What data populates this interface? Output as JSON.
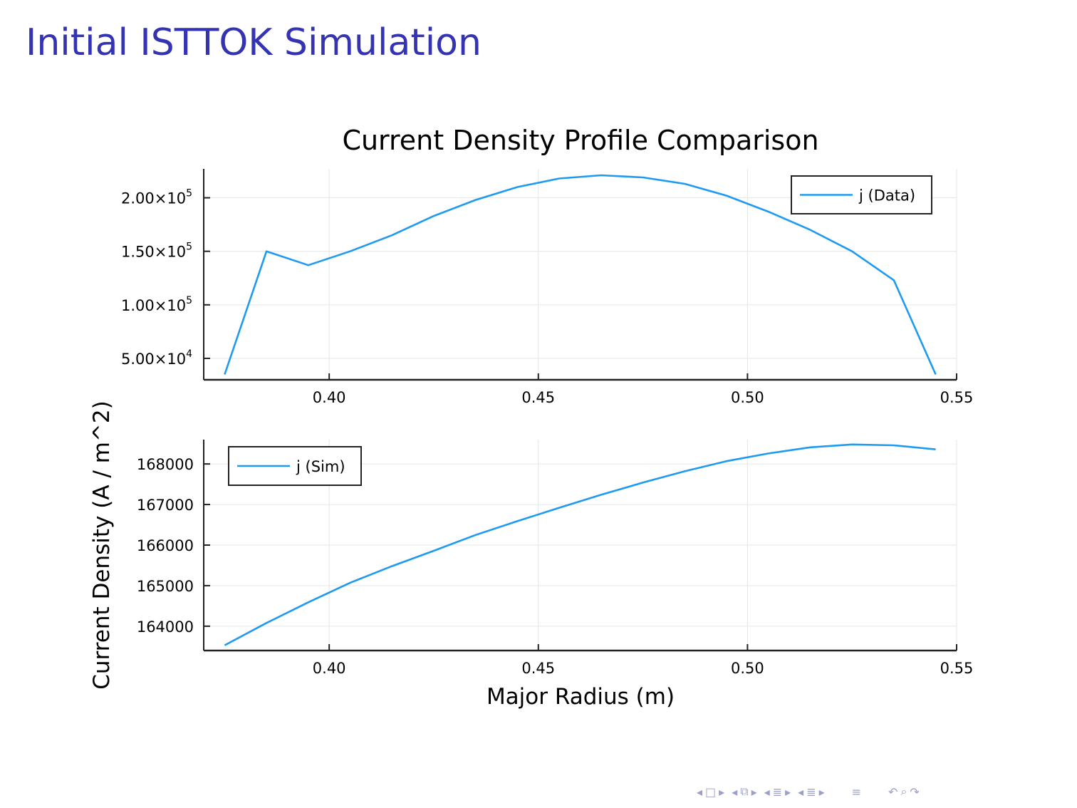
{
  "slide": {
    "title": "Initial ISTTOK Simulation"
  },
  "colors": {
    "title": "#3333b3",
    "series": "#1e9bf0",
    "nav": "#9aa0c8"
  },
  "navigation": {
    "icons": [
      "prev-frame-icon",
      "frame-icon",
      "next-frame-icon",
      "prev-subsection-icon",
      "subsection-icon",
      "next-subsection-icon",
      "prev-section-icon",
      "section-icon",
      "next-section-icon",
      "prev-slide-icon",
      "slide-icon",
      "next-slide-icon",
      "align-icon",
      "undo-icon",
      "search-icon",
      "redo-icon"
    ]
  },
  "chart_data": [
    {
      "type": "line",
      "title": "Current Density Profile Comparison",
      "xlabel": "",
      "ylabel": "Current Density (A / m^2)",
      "xlim": [
        0.37,
        0.55
      ],
      "ylim": [
        30000,
        227000
      ],
      "grid": true,
      "legend": "top-right",
      "xticks": [
        0.4,
        0.45,
        0.5,
        0.55
      ],
      "xtick_labels": [
        "0.40",
        "0.45",
        "0.50",
        "0.55"
      ],
      "yticks": [
        50000,
        100000,
        150000,
        200000
      ],
      "ytick_labels": [
        {
          "mant": "5.00",
          "exp": "4"
        },
        {
          "mant": "1.00",
          "exp": "5"
        },
        {
          "mant": "1.50",
          "exp": "5"
        },
        {
          "mant": "2.00",
          "exp": "5"
        }
      ],
      "series": [
        {
          "name": "j (Data)",
          "x": [
            0.375,
            0.385,
            0.395,
            0.405,
            0.415,
            0.425,
            0.435,
            0.445,
            0.455,
            0.465,
            0.475,
            0.485,
            0.495,
            0.505,
            0.515,
            0.525,
            0.535,
            0.545
          ],
          "y": [
            35000,
            150000,
            137000,
            150000,
            165000,
            183000,
            198000,
            210000,
            218000,
            221000,
            219000,
            213000,
            202000,
            187000,
            170000,
            150000,
            123000,
            35000
          ]
        }
      ]
    },
    {
      "type": "line",
      "title": "",
      "xlabel": "Major Radius (m)",
      "ylabel": "",
      "xlim": [
        0.37,
        0.55
      ],
      "ylim": [
        163400,
        168600
      ],
      "grid": true,
      "legend": "top-left",
      "xticks": [
        0.4,
        0.45,
        0.5,
        0.55
      ],
      "xtick_labels": [
        "0.40",
        "0.45",
        "0.50",
        "0.55"
      ],
      "yticks": [
        164000,
        165000,
        166000,
        167000,
        168000
      ],
      "ytick_labels": [
        "164000",
        "165000",
        "166000",
        "167000",
        "168000"
      ],
      "series": [
        {
          "name": "j (Sim)",
          "x": [
            0.375,
            0.385,
            0.395,
            0.405,
            0.415,
            0.425,
            0.435,
            0.445,
            0.455,
            0.465,
            0.475,
            0.485,
            0.495,
            0.505,
            0.515,
            0.525,
            0.535,
            0.545
          ],
          "y": [
            163530,
            164080,
            164590,
            165070,
            165480,
            165860,
            166250,
            166590,
            166920,
            167240,
            167540,
            167820,
            168070,
            168260,
            168410,
            168480,
            168460,
            168360
          ]
        }
      ]
    }
  ]
}
